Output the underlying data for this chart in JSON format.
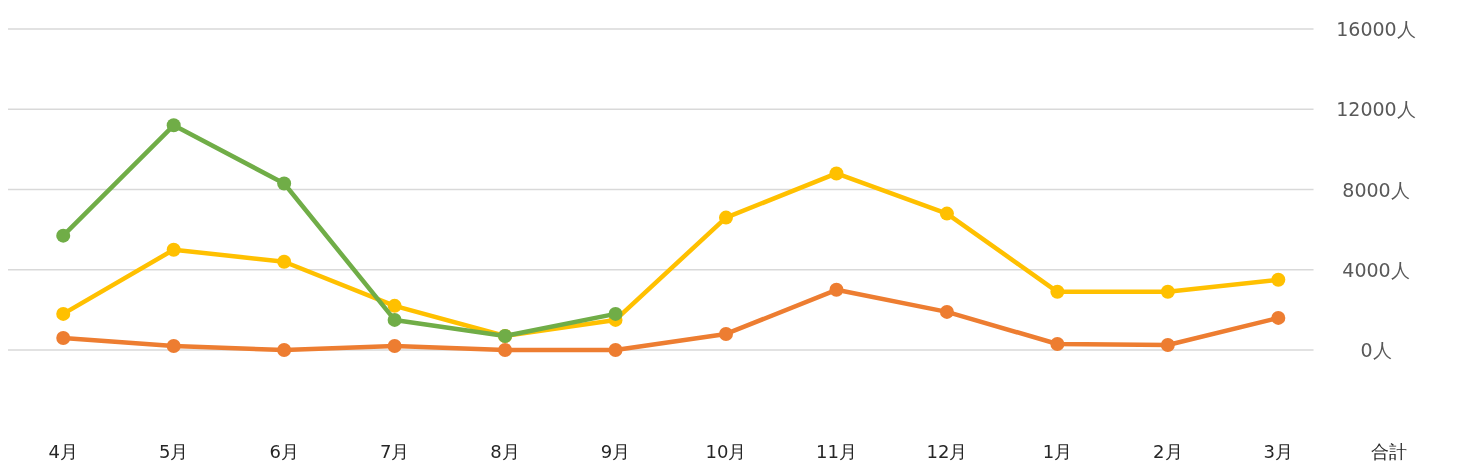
{
  "chart_data": {
    "type": "line",
    "categories": [
      "4月",
      "5月",
      "6月",
      "7月",
      "8月",
      "9月",
      "10月",
      "11月",
      "12月",
      "1月",
      "2月",
      "3月",
      "合計"
    ],
    "series": [
      {
        "color": "#ffc000",
        "values": [
          1800,
          5000,
          4400,
          2200,
          700,
          1500,
          6600,
          8800,
          6800,
          2900,
          2900,
          3500,
          null
        ]
      },
      {
        "color": "#ed7d31",
        "values": [
          600,
          200,
          0,
          200,
          0,
          0,
          800,
          3000,
          1900,
          300,
          250,
          1600,
          null
        ]
      },
      {
        "color": "#70ad47",
        "values": [
          5700,
          11200,
          8300,
          1500,
          700,
          1800,
          null,
          null,
          null,
          null,
          null,
          null,
          null
        ]
      }
    ],
    "yticks": [
      {
        "value": 0,
        "label": "0人"
      },
      {
        "value": 4000,
        "label": "4000人"
      },
      {
        "value": 8000,
        "label": "8000人"
      },
      {
        "value": 12000,
        "label": "12000人"
      },
      {
        "value": 16000,
        "label": "16000人"
      }
    ],
    "ylim": [
      0,
      16000
    ],
    "grid": "y",
    "marker": "circle",
    "line_style": "solid"
  }
}
